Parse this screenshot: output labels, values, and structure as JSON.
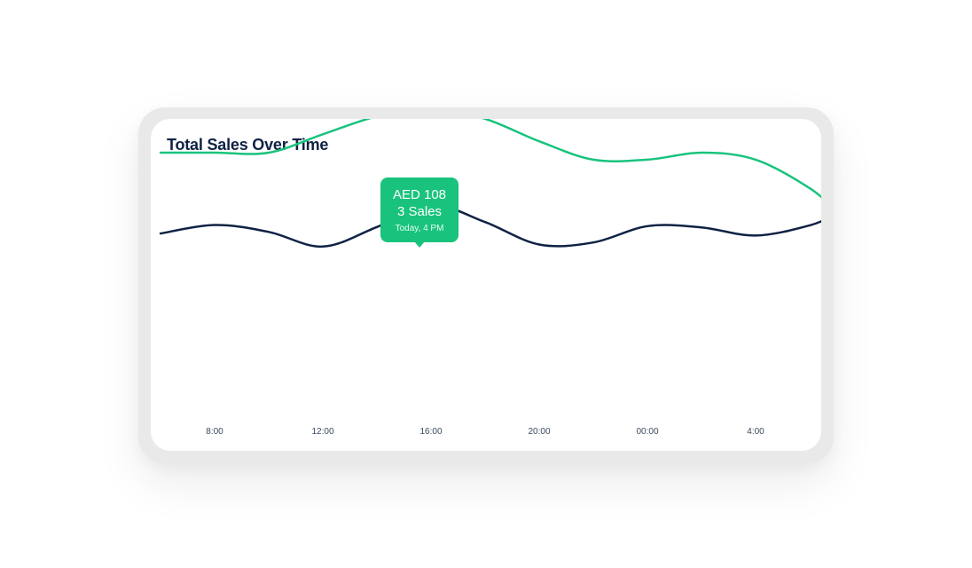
{
  "chart_data": {
    "type": "line",
    "title": "Total Sales Over Time",
    "xlabel": "",
    "ylabel": "",
    "grid": false,
    "x_ticks": [
      "8:00",
      "12:00",
      "16:00",
      "20:00",
      "00:00",
      "4:00"
    ],
    "x": [
      6,
      8,
      10,
      12,
      14,
      16,
      18,
      20,
      22,
      24,
      26,
      28,
      30,
      31
    ],
    "ylim": [
      0,
      10
    ],
    "series": [
      {
        "color": "#19c37d",
        "values": [
          6.26,
          6.26,
          6.26,
          6.71,
          7.15,
          7.35,
          7.09,
          6.54,
          6.09,
          6.09,
          6.26,
          6.09,
          5.39,
          4.82
        ]
      },
      {
        "color": "#0f2244",
        "values": [
          4.28,
          4.49,
          4.32,
          3.96,
          4.44,
          4.98,
          4.56,
          4.01,
          4.06,
          4.46,
          4.43,
          4.23,
          4.48,
          4.76
        ]
      }
    ],
    "tooltip": {
      "amount": "AED 108",
      "sales": "3 Sales",
      "date": "Today, 4 PM",
      "x": 16,
      "y": 7.35
    }
  },
  "colors": {
    "accent": "#19c37d",
    "navy": "#0f2244"
  }
}
